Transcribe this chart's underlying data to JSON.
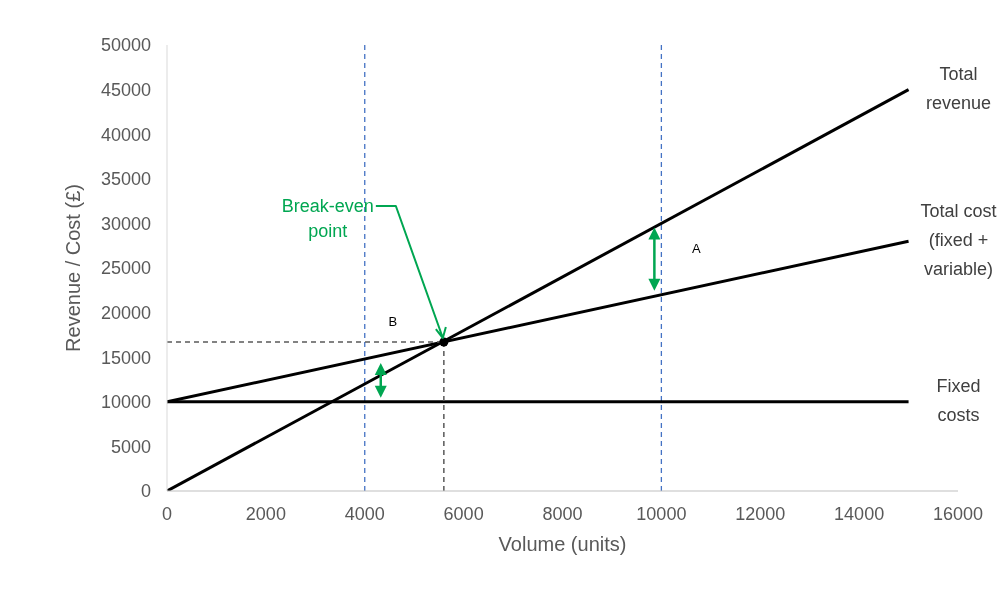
{
  "chart_data": {
    "type": "line",
    "xlabel": "Volume (units)",
    "ylabel": "Revenue / Cost (£)",
    "xlim": [
      0,
      16000
    ],
    "xticks": [
      0,
      2000,
      4000,
      6000,
      8000,
      10000,
      12000,
      14000,
      16000
    ],
    "ylim": [
      0,
      50000
    ],
    "yticks": [
      0,
      5000,
      10000,
      15000,
      20000,
      25000,
      30000,
      35000,
      40000,
      45000,
      50000
    ],
    "marker": "none",
    "line_style": "solid",
    "series": [
      {
        "name": "Total revenue",
        "color": "#000000",
        "x": [
          0,
          15000
        ],
        "values": [
          0,
          45000
        ]
      },
      {
        "name": "Total cost (fixed + variable)",
        "color": "#000000",
        "x": [
          0,
          15000
        ],
        "values": [
          10000,
          28000
        ]
      },
      {
        "name": "Fixed costs",
        "color": "#000000",
        "x": [
          0,
          15000
        ],
        "values": [
          10000,
          10000
        ]
      },
      {
        "color": "#595959",
        "x": [
          0,
          5600
        ],
        "values": [
          16700,
          16700
        ],
        "line_style": "dashed"
      },
      {
        "color": "#595959",
        "x": [
          5600,
          5600
        ],
        "values": [
          0,
          16700
        ],
        "line_style": "dashed"
      },
      {
        "type": "scatter",
        "color": "#000000",
        "x": [
          5600
        ],
        "values": [
          16700
        ],
        "marker": "circle"
      }
    ],
    "ref_lines": [
      {
        "axis": "x",
        "value": 4000,
        "color": "#4472c4",
        "line_style": "dashed"
      },
      {
        "axis": "x",
        "value": 10000,
        "color": "#4472c4",
        "line_style": "dashed"
      }
    ],
    "annotations": [
      {
        "text": "Break-even point",
        "x": 5600,
        "y": 16700
      },
      "A",
      "B"
    ]
  }
}
